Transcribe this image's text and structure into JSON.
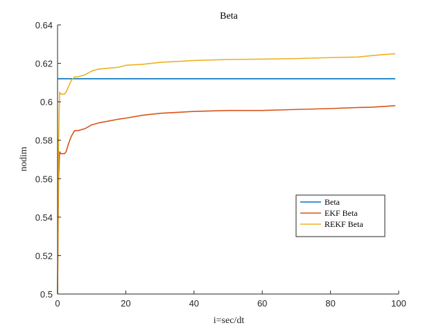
{
  "chart_data": {
    "type": "line",
    "title": "Beta",
    "xlabel": "i=sec/dt",
    "ylabel": "nodim",
    "xlim": [
      0,
      100
    ],
    "ylim": [
      0.5,
      0.64
    ],
    "xticks": [
      0,
      20,
      40,
      60,
      80,
      100
    ],
    "xtick_labels": [
      "0",
      "20",
      "40",
      "60",
      "80",
      "100"
    ],
    "yticks": [
      0.5,
      0.52,
      0.54,
      0.56,
      0.58,
      0.6,
      0.62,
      0.64
    ],
    "ytick_labels": [
      "0.5",
      "0.52",
      "0.54",
      "0.56",
      "0.58",
      "0.6",
      "0.62",
      "0.64"
    ],
    "grid": false,
    "legend_position": "lower-right",
    "series": [
      {
        "name": "Beta",
        "color": "#0072BD",
        "x": [
          0,
          99
        ],
        "y": [
          0.612,
          0.612
        ]
      },
      {
        "name": "EKF Beta",
        "color": "#D95319",
        "x": [
          0,
          0.3,
          0.6,
          1,
          1.5,
          2,
          2.5,
          3,
          4,
          5,
          6,
          8,
          10,
          12,
          15,
          18,
          20,
          25,
          30,
          35,
          40,
          50,
          60,
          70,
          80,
          88,
          92,
          95,
          99
        ],
        "y": [
          0.5,
          0.56,
          0.574,
          0.573,
          0.573,
          0.573,
          0.574,
          0.577,
          0.582,
          0.585,
          0.585,
          0.586,
          0.588,
          0.589,
          0.59,
          0.591,
          0.5915,
          0.593,
          0.594,
          0.5945,
          0.595,
          0.5955,
          0.5955,
          0.596,
          0.5965,
          0.597,
          0.5972,
          0.5975,
          0.598
        ]
      },
      {
        "name": "REKF Beta",
        "color": "#EDB120",
        "x": [
          0,
          0.3,
          0.6,
          1,
          1.5,
          2,
          2.5,
          3,
          3.5,
          4,
          5,
          6,
          8,
          10,
          12,
          15,
          18,
          20,
          25,
          30,
          35,
          40,
          50,
          60,
          70,
          80,
          88,
          92,
          95,
          99
        ],
        "y": [
          0.5,
          0.58,
          0.605,
          0.604,
          0.604,
          0.604,
          0.605,
          0.607,
          0.609,
          0.611,
          0.613,
          0.613,
          0.614,
          0.616,
          0.617,
          0.6175,
          0.618,
          0.619,
          0.6195,
          0.6205,
          0.621,
          0.6215,
          0.622,
          0.6222,
          0.6225,
          0.623,
          0.6233,
          0.624,
          0.6245,
          0.625
        ]
      }
    ]
  }
}
